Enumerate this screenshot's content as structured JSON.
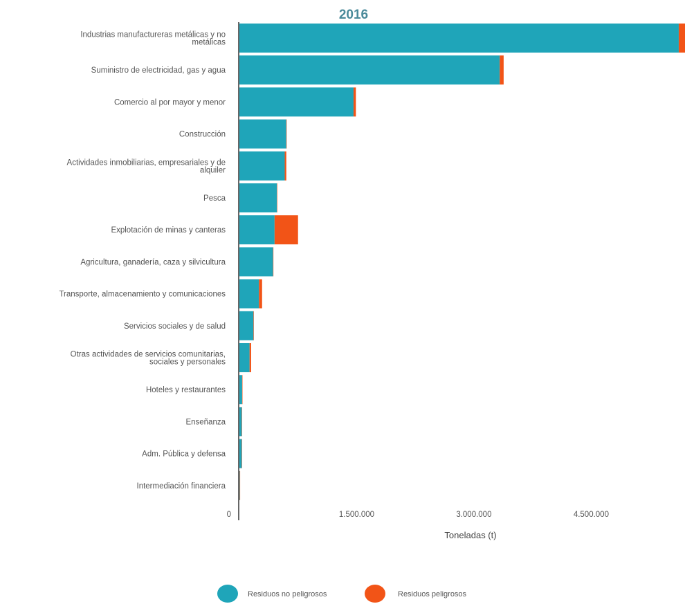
{
  "chart_data": {
    "type": "bar",
    "orientation": "horizontal",
    "stacked": true,
    "title": "2016",
    "xlabel": "Toneladas (t)",
    "ylabel": "",
    "xlim": [
      0,
      5700000
    ],
    "xticks": [
      0,
      1500000,
      3000000,
      4500000
    ],
    "xtick_labels": [
      "0",
      "1.500.000",
      "3.000.000",
      "4.500.000"
    ],
    "grid": false,
    "legend_position": "bottom",
    "categories": [
      "Industrias manufactureras metálicas y no metálicas",
      "Suministro de electricidad, gas y agua",
      "Comercio al por mayor y menor",
      "Construcción",
      "Actividades inmobiliarias, empresariales y de alquiler",
      "Pesca",
      "Explotación de minas y canteras",
      "Agricultura, ganadería, caza y silvicultura",
      "Transporte, almacenamiento y comunicaciones",
      "Servicios sociales y de salud",
      "Otras actividades de servicios comunitarias, sociales y personales",
      "Hoteles y restaurantes",
      "Enseñanza",
      "Adm. Pública y defensa",
      "Intermediación financiera"
    ],
    "category_lines": [
      [
        "Industrias manufactureras metálicas y no",
        "metálicas"
      ],
      [
        "Suministro de electricidad, gas y agua"
      ],
      [
        "Comercio al por mayor y menor"
      ],
      [
        "Construcción"
      ],
      [
        "Actividades inmobiliarias, empresariales y de",
        "alquiler"
      ],
      [
        "Pesca"
      ],
      [
        "Explotación de minas y canteras"
      ],
      [
        "Agricultura, ganadería, caza y silvicultura"
      ],
      [
        "Transporte, almacenamiento y comunicaciones"
      ],
      [
        "Servicios sociales y de salud"
      ],
      [
        "Otras actividades de servicios comunitarias,",
        "sociales y personales"
      ],
      [
        "Hoteles y restaurantes"
      ],
      [
        "Enseñanza"
      ],
      [
        "Adm. Pública y defensa"
      ],
      [
        "Intermediación financiera"
      ]
    ],
    "series": [
      {
        "name": "Residuos no peligrosos",
        "color": "#1fa5b9",
        "values": [
          5620000,
          3330000,
          1460000,
          600000,
          580000,
          480000,
          450000,
          430000,
          250000,
          180000,
          130000,
          35000,
          30000,
          30000,
          5000
        ]
      },
      {
        "name": "Residuos peligrosos",
        "color": "#f25417",
        "values": [
          180000,
          50000,
          30000,
          5000,
          20000,
          5000,
          300000,
          5000,
          40000,
          5000,
          20000,
          2000,
          2000,
          2000,
          1000
        ]
      }
    ]
  }
}
